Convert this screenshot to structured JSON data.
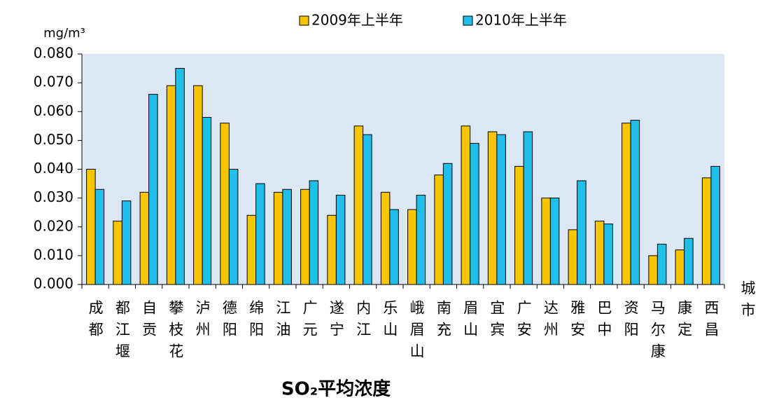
{
  "chart_data": {
    "type": "bar",
    "title": "SO₂平均浓度",
    "y_label": "mg/m³",
    "x_label": "城市",
    "categories": [
      "成都",
      "都江堰",
      "自贡",
      "攀枝花",
      "泸州",
      "德阳",
      "绵阳",
      "江油",
      "广元",
      "遂宁",
      "内江",
      "乐山",
      "峨眉山",
      "南充",
      "眉山",
      "宜宾",
      "广安",
      "达州",
      "雅安",
      "巴中",
      "资阳",
      "马尔康",
      "康定",
      "西昌"
    ],
    "series": [
      {
        "name": "2009年上半年",
        "color": "#f7c600",
        "values": [
          0.04,
          0.022,
          0.032,
          0.069,
          0.069,
          0.056,
          0.024,
          0.032,
          0.033,
          0.024,
          0.055,
          0.032,
          0.026,
          0.038,
          0.055,
          0.053,
          0.041,
          0.03,
          0.019,
          0.022,
          0.056,
          0.01,
          0.012,
          0.037
        ]
      },
      {
        "name": "2010年上半年",
        "color": "#1fbfea",
        "values": [
          0.033,
          0.029,
          0.066,
          0.075,
          0.058,
          0.04,
          0.035,
          0.033,
          0.036,
          0.031,
          0.052,
          0.026,
          0.031,
          0.042,
          0.049,
          0.052,
          0.053,
          0.03,
          0.036,
          0.021,
          0.057,
          0.014,
          0.016,
          0.041
        ]
      }
    ],
    "ylim": [
      0,
      0.08
    ],
    "yticks": [
      {
        "value": 0,
        "label": "0.000"
      },
      {
        "value": 0.01,
        "label": "0.010"
      },
      {
        "value": 0.02,
        "label": "0.020"
      },
      {
        "value": 0.03,
        "label": "0.030"
      },
      {
        "value": 0.04,
        "label": "0.040"
      },
      {
        "value": 0.05,
        "label": "0.050"
      },
      {
        "value": 0.06,
        "label": "0.060"
      },
      {
        "value": 0.07,
        "label": "0.070"
      },
      {
        "value": 0.08,
        "label": "0.080"
      }
    ],
    "legend": "top"
  }
}
